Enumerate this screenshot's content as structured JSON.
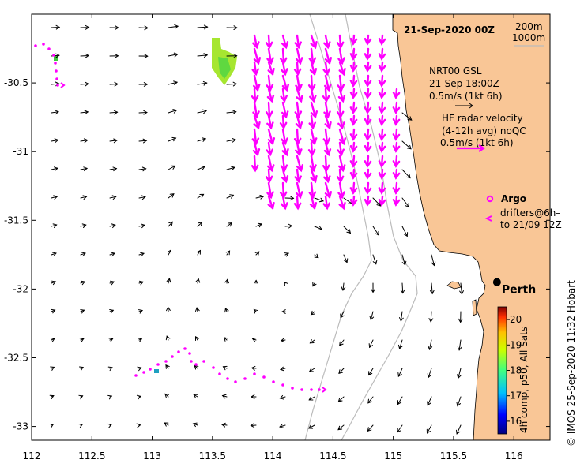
{
  "title": "21-Sep-2020 00Z",
  "depth_legend": {
    "contour1": "200m",
    "contour2": "1000m"
  },
  "wind_legend": {
    "line1": "NRT00 GSL",
    "line2": "21-Sep 18:00Z",
    "line3": "0.5m/s (1kt 6h)"
  },
  "radar_legend": {
    "line1": "HF radar velocity",
    "line2": "(4-12h avg) noQC",
    "line3": "0.5m/s (1kt 6h)"
  },
  "argo_label": "Argo",
  "drifters_label": {
    "line1": "drifters@6h–",
    "line2": "to 21/09 12Z"
  },
  "city": {
    "name": "Perth",
    "lon": 115.86,
    "lat": -31.95
  },
  "colorbar": {
    "label": "4h comp, p50, All Sats",
    "ticks": [
      "16",
      "17",
      "18",
      "19",
      "20"
    ],
    "min": 15.5,
    "max": 20.5
  },
  "credit": "©  IMOS 25-Sep-2020 11:32 Hobart",
  "axes": {
    "x_ticks": [
      "112",
      "112.5",
      "113",
      "113.5",
      "114",
      "114.5",
      "115",
      "115.5",
      "116"
    ],
    "y_ticks": [
      "-30.5",
      "-31",
      "-31.5",
      "-32",
      "-32.5",
      "-33"
    ],
    "lon_range": [
      112,
      116.3
    ],
    "lat_range": [
      -33.1,
      -30.0
    ]
  },
  "colors": {
    "land": "#F9C696",
    "radar": "#FF00FF",
    "vector": "#000000",
    "isobath": "#BBBBBB"
  }
}
